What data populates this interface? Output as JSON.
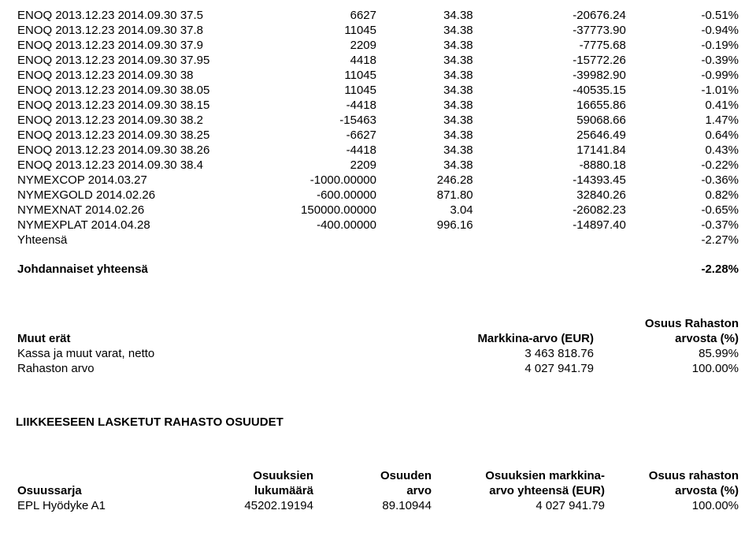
{
  "main_rows": [
    {
      "label": "ENOQ 2013.12.23 2014.09.30 37.5",
      "v1": "6627",
      "v2": "34.38",
      "v3": "-20676.24",
      "v4": "-0.51%"
    },
    {
      "label": "ENOQ 2013.12.23 2014.09.30 37.8",
      "v1": "11045",
      "v2": "34.38",
      "v3": "-37773.90",
      "v4": "-0.94%"
    },
    {
      "label": "ENOQ 2013.12.23 2014.09.30 37.9",
      "v1": "2209",
      "v2": "34.38",
      "v3": "-7775.68",
      "v4": "-0.19%"
    },
    {
      "label": "ENOQ 2013.12.23 2014.09.30 37.95",
      "v1": "4418",
      "v2": "34.38",
      "v3": "-15772.26",
      "v4": "-0.39%"
    },
    {
      "label": "ENOQ 2013.12.23 2014.09.30 38",
      "v1": "11045",
      "v2": "34.38",
      "v3": "-39982.90",
      "v4": "-0.99%"
    },
    {
      "label": "ENOQ 2013.12.23 2014.09.30 38.05",
      "v1": "11045",
      "v2": "34.38",
      "v3": "-40535.15",
      "v4": "-1.01%"
    },
    {
      "label": "ENOQ 2013.12.23 2014.09.30 38.15",
      "v1": "-4418",
      "v2": "34.38",
      "v3": "16655.86",
      "v4": "0.41%"
    },
    {
      "label": "ENOQ 2013.12.23 2014.09.30 38.2",
      "v1": "-15463",
      "v2": "34.38",
      "v3": "59068.66",
      "v4": "1.47%"
    },
    {
      "label": "ENOQ 2013.12.23 2014.09.30 38.25",
      "v1": "-6627",
      "v2": "34.38",
      "v3": "25646.49",
      "v4": "0.64%"
    },
    {
      "label": "ENOQ 2013.12.23 2014.09.30 38.26",
      "v1": "-4418",
      "v2": "34.38",
      "v3": "17141.84",
      "v4": "0.43%"
    },
    {
      "label": "ENOQ 2013.12.23 2014.09.30 38.4",
      "v1": "2209",
      "v2": "34.38",
      "v3": "-8880.18",
      "v4": "-0.22%"
    },
    {
      "label": "NYMEXCOP 2014.03.27",
      "v1": "-1000.00000",
      "v2": "246.28",
      "v3": "-14393.45",
      "v4": "-0.36%"
    },
    {
      "label": "NYMEXGOLD 2014.02.26",
      "v1": "-600.00000",
      "v2": "871.80",
      "v3": "32840.26",
      "v4": "0.82%"
    },
    {
      "label": "NYMEXNAT 2014.02.26",
      "v1": "150000.00000",
      "v2": "3.04",
      "v3": "-26082.23",
      "v4": "-0.65%"
    },
    {
      "label": "NYMEXPLAT 2014.04.28",
      "v1": "-400.00000",
      "v2": "996.16",
      "v3": "-14897.40",
      "v4": "-0.37%"
    }
  ],
  "yhteensa": {
    "label": "Yhteensä",
    "val": "-2.27%"
  },
  "joh": {
    "label": "Johdannaiset yhteensä",
    "val": "-2.28%"
  },
  "muut": {
    "title": "Muut erät",
    "mkt": "Markkina-arvo (EUR)",
    "share": "Osuus Rahaston",
    "share2": "arvosta (%)"
  },
  "muut_rows": [
    {
      "label": "Kassa ja muut varat, netto",
      "v1": "3 463 818.76",
      "v2": "85.99%"
    },
    {
      "label": "Rahaston arvo",
      "v1": "4 027 941.79",
      "v2": "100.00%"
    }
  ],
  "liik": {
    "title": "LIIKKEESEEN LASKETUT RAHASTO OSUUDET"
  },
  "osu": {
    "h0": "Osuussarja",
    "h1a": "Osuuksien",
    "h1b": "lukumäärä",
    "h2a": "Osuuden",
    "h2b": "arvo",
    "h3a": "Osuuksien markkina-",
    "h3b": "arvo yhteensä (EUR)",
    "h4a": "Osuus rahaston",
    "h4b": "arvosta (%)"
  },
  "osu_rows": [
    {
      "label": "EPL Hyödyke A1",
      "v1": "45202.19194",
      "v2": "89.10944",
      "v3": "4 027 941.79",
      "v4": "100.00%"
    }
  ]
}
